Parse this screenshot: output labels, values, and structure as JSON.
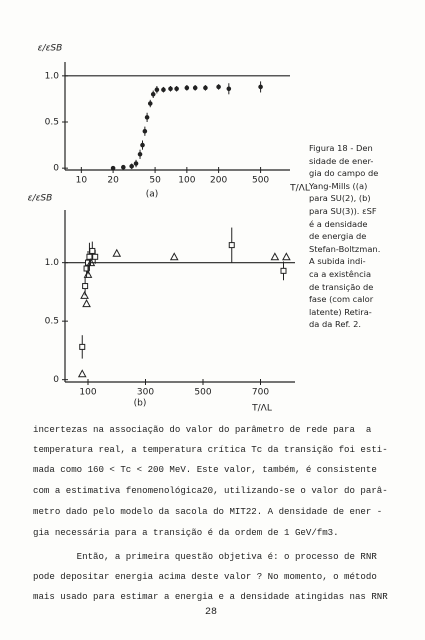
{
  "chart_data": [
    {
      "type": "scatter",
      "xscale": "log",
      "xlim": [
        7,
        950
      ],
      "ylim": [
        -0.02,
        1.15
      ],
      "xticks": [
        10,
        20,
        50,
        100,
        200,
        500
      ],
      "yticks": [
        0,
        0.5,
        {
          "value": 1,
          "label": "1.0"
        }
      ],
      "y_label": "ε/εSB",
      "x_label": "T/ΛL",
      "panel_label": "(a)",
      "reference_line": 1,
      "series": [
        {
          "marker": "circle",
          "x": [
            20,
            25,
            30,
            33,
            36,
            38,
            40,
            42,
            45,
            48,
            52,
            60,
            70,
            80,
            100,
            120,
            150,
            200,
            250,
            500
          ],
          "values": [
            0.0,
            0.01,
            0.02,
            0.05,
            0.15,
            0.25,
            0.4,
            0.55,
            0.7,
            0.8,
            0.85,
            0.85,
            0.86,
            0.86,
            0.87,
            0.87,
            0.87,
            0.88,
            0.86,
            0.88
          ],
          "errors": [
            0.02,
            0.02,
            0.03,
            0.04,
            0.05,
            0.05,
            0.05,
            0.05,
            0.04,
            0.04,
            0.04,
            0.03,
            0.03,
            0.03,
            0.03,
            0.03,
            0.03,
            0.03,
            0.06,
            0.06
          ]
        }
      ]
    },
    {
      "type": "scatter",
      "xscale": "linear",
      "xlim": [
        20,
        820
      ],
      "ylim": [
        -0.02,
        1.45
      ],
      "xticks": [
        100,
        300,
        500,
        700
      ],
      "yticks": [
        0,
        0.5,
        {
          "value": 1,
          "label": "1.0"
        }
      ],
      "y_label": "ε/εSB",
      "x_label": "T/ΛL",
      "panel_label": "(b)",
      "reference_line": 1,
      "series": [
        {
          "marker": "square",
          "x": [
            80,
            90,
            95,
            100,
            105,
            115,
            125,
            600,
            780
          ],
          "values": [
            0.28,
            0.8,
            0.95,
            1.0,
            1.05,
            1.1,
            1.05,
            1.15,
            0.93
          ],
          "errors": [
            0.1,
            0.08,
            0.08,
            0.1,
            0.12,
            0.08,
            0.06,
            0.15,
            0.08
          ]
        },
        {
          "marker": "triangle",
          "x": [
            80,
            88,
            95,
            100,
            110,
            200,
            400,
            750,
            790
          ],
          "values": [
            0.05,
            0.72,
            0.65,
            0.9,
            1.0,
            1.08,
            1.05,
            1.05,
            1.05
          ]
        }
      ]
    }
  ],
  "caption": [
    "Figura 18 - Den",
    "sidade de ener-",
    "gia do campo de",
    "Yang-Mills ((a)",
    "para SU(2), (b)",
    "para SU(3)). εSF",
    "é a densidade",
    "de energia de",
    "Stefan-Boltzman.",
    "A subida indi-",
    "ca a existência",
    "de transição de",
    "fase (com calor",
    "latente) Retira-",
    "da da Ref. 2."
  ],
  "body": [
    "incertezas na associação do valor do parâmetro de rede para  a",
    "temperatura real, a temperatura crítica Tc da transição foi esti-",
    "mada como 160 < Tc < 200 MeV. Este valor, também, é consistente",
    "com a estimativa fenomenológica20, utilizando-se o valor do parâ-",
    "metro dado pelo modelo da sacola do MIT22. A densidade de ener -",
    "gia necessária para a transição é da ordem de 1 GeV/fm3.",
    "        Então, a primeira questão objetiva é: o processo de RNR",
    "pode depositar energia acima deste valor ? No momento, o método",
    "mais usado para estimar a energia e a densidade atingidas nas RNR"
  ],
  "page_number": "28"
}
